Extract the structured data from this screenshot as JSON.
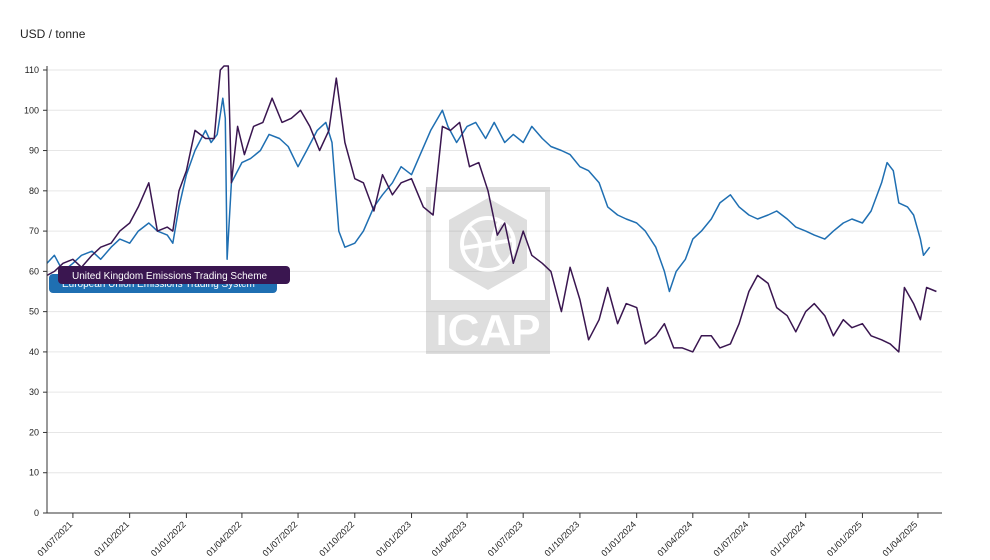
{
  "chart_data": {
    "type": "line",
    "ylabel": "USD / tonne",
    "ylim": [
      0,
      110
    ],
    "yticks": [
      0,
      10,
      20,
      30,
      40,
      50,
      60,
      70,
      80,
      90,
      100,
      110
    ],
    "x_tick_labels": [
      "01/07/2021",
      "01/10/2021",
      "01/01/2022",
      "01/04/2022",
      "01/07/2022",
      "01/10/2022",
      "01/01/2023",
      "01/04/2023",
      "01/07/2023",
      "01/10/2023",
      "01/01/2024",
      "01/04/2024",
      "01/07/2024",
      "01/10/2024",
      "01/01/2025",
      "01/04/2025"
    ],
    "xlim": [
      "2021-05-20",
      "2025-05-10"
    ],
    "grid": true,
    "watermark": "ICAP",
    "series": [
      {
        "name": "European Union Emissions Trading System",
        "color": "#1f6fb2",
        "points": [
          [
            "2021-05-20",
            62
          ],
          [
            "2021-06-01",
            64
          ],
          [
            "2021-06-15",
            60
          ],
          [
            "2021-07-01",
            62
          ],
          [
            "2021-07-15",
            64
          ],
          [
            "2021-08-01",
            65
          ],
          [
            "2021-08-15",
            63
          ],
          [
            "2021-09-01",
            66
          ],
          [
            "2021-09-15",
            68
          ],
          [
            "2021-10-01",
            67
          ],
          [
            "2021-10-15",
            70
          ],
          [
            "2021-11-01",
            72
          ],
          [
            "2021-11-15",
            70
          ],
          [
            "2021-12-01",
            69
          ],
          [
            "2021-12-10",
            67
          ],
          [
            "2021-12-20",
            76
          ],
          [
            "2022-01-01",
            84
          ],
          [
            "2022-01-15",
            90
          ],
          [
            "2022-02-01",
            95
          ],
          [
            "2022-02-10",
            92
          ],
          [
            "2022-02-20",
            94
          ],
          [
            "2022-03-01",
            103
          ],
          [
            "2022-03-05",
            98
          ],
          [
            "2022-03-08",
            63
          ],
          [
            "2022-03-15",
            82
          ],
          [
            "2022-04-01",
            87
          ],
          [
            "2022-04-15",
            88
          ],
          [
            "2022-05-01",
            90
          ],
          [
            "2022-05-15",
            94
          ],
          [
            "2022-06-01",
            93
          ],
          [
            "2022-06-15",
            91
          ],
          [
            "2022-07-01",
            86
          ],
          [
            "2022-07-15",
            90
          ],
          [
            "2022-08-01",
            95
          ],
          [
            "2022-08-15",
            97
          ],
          [
            "2022-08-25",
            92
          ],
          [
            "2022-09-05",
            70
          ],
          [
            "2022-09-15",
            66
          ],
          [
            "2022-10-01",
            67
          ],
          [
            "2022-10-15",
            70
          ],
          [
            "2022-11-01",
            76
          ],
          [
            "2022-11-15",
            79
          ],
          [
            "2022-12-01",
            82
          ],
          [
            "2022-12-15",
            86
          ],
          [
            "2023-01-01",
            84
          ],
          [
            "2023-01-15",
            89
          ],
          [
            "2023-02-01",
            95
          ],
          [
            "2023-02-20",
            100
          ],
          [
            "2023-03-01",
            96
          ],
          [
            "2023-03-15",
            92
          ],
          [
            "2023-04-01",
            96
          ],
          [
            "2023-04-15",
            97
          ],
          [
            "2023-05-01",
            93
          ],
          [
            "2023-05-15",
            97
          ],
          [
            "2023-06-01",
            92
          ],
          [
            "2023-06-15",
            94
          ],
          [
            "2023-07-01",
            92
          ],
          [
            "2023-07-15",
            96
          ],
          [
            "2023-08-01",
            93
          ],
          [
            "2023-08-15",
            91
          ],
          [
            "2023-09-01",
            90
          ],
          [
            "2023-09-15",
            89
          ],
          [
            "2023-10-01",
            86
          ],
          [
            "2023-10-15",
            85
          ],
          [
            "2023-11-01",
            82
          ],
          [
            "2023-11-15",
            76
          ],
          [
            "2023-12-01",
            74
          ],
          [
            "2023-12-15",
            73
          ],
          [
            "2024-01-01",
            72
          ],
          [
            "2024-01-15",
            70
          ],
          [
            "2024-02-01",
            66
          ],
          [
            "2024-02-15",
            60
          ],
          [
            "2024-02-23",
            55
          ],
          [
            "2024-03-05",
            60
          ],
          [
            "2024-03-20",
            63
          ],
          [
            "2024-04-01",
            68
          ],
          [
            "2024-04-15",
            70
          ],
          [
            "2024-05-01",
            73
          ],
          [
            "2024-05-15",
            77
          ],
          [
            "2024-06-01",
            79
          ],
          [
            "2024-06-15",
            76
          ],
          [
            "2024-07-01",
            74
          ],
          [
            "2024-07-15",
            73
          ],
          [
            "2024-08-01",
            74
          ],
          [
            "2024-08-15",
            75
          ],
          [
            "2024-09-01",
            73
          ],
          [
            "2024-09-15",
            71
          ],
          [
            "2024-10-01",
            70
          ],
          [
            "2024-10-15",
            69
          ],
          [
            "2024-11-01",
            68
          ],
          [
            "2024-11-15",
            70
          ],
          [
            "2024-12-01",
            72
          ],
          [
            "2024-12-15",
            73
          ],
          [
            "2025-01-01",
            72
          ],
          [
            "2025-01-15",
            75
          ],
          [
            "2025-02-01",
            82
          ],
          [
            "2025-02-10",
            87
          ],
          [
            "2025-02-20",
            85
          ],
          [
            "2025-03-01",
            77
          ],
          [
            "2025-03-15",
            76
          ],
          [
            "2025-03-25",
            74
          ],
          [
            "2025-04-05",
            68
          ],
          [
            "2025-04-10",
            64
          ],
          [
            "2025-04-20",
            66
          ]
        ]
      },
      {
        "name": "United Kingdom Emissions Trading Scheme",
        "color": "#3a1650",
        "points": [
          [
            "2021-05-20",
            59
          ],
          [
            "2021-06-01",
            60
          ],
          [
            "2021-06-15",
            62
          ],
          [
            "2021-07-01",
            63
          ],
          [
            "2021-07-15",
            61
          ],
          [
            "2021-08-01",
            64
          ],
          [
            "2021-08-15",
            66
          ],
          [
            "2021-09-01",
            67
          ],
          [
            "2021-09-15",
            70
          ],
          [
            "2021-10-01",
            72
          ],
          [
            "2021-10-15",
            76
          ],
          [
            "2021-11-01",
            82
          ],
          [
            "2021-11-15",
            70
          ],
          [
            "2021-12-01",
            71
          ],
          [
            "2021-12-10",
            70
          ],
          [
            "2021-12-20",
            80
          ],
          [
            "2022-01-01",
            85
          ],
          [
            "2022-01-15",
            95
          ],
          [
            "2022-02-01",
            93
          ],
          [
            "2022-02-15",
            93
          ],
          [
            "2022-02-25",
            110
          ],
          [
            "2022-03-03",
            111
          ],
          [
            "2022-03-10",
            111
          ],
          [
            "2022-03-15",
            82
          ],
          [
            "2022-03-25",
            96
          ],
          [
            "2022-04-05",
            89
          ],
          [
            "2022-04-20",
            96
          ],
          [
            "2022-05-05",
            97
          ],
          [
            "2022-05-20",
            103
          ],
          [
            "2022-06-05",
            97
          ],
          [
            "2022-06-20",
            98
          ],
          [
            "2022-07-05",
            100
          ],
          [
            "2022-07-20",
            96
          ],
          [
            "2022-08-05",
            90
          ],
          [
            "2022-08-20",
            95
          ],
          [
            "2022-09-01",
            108
          ],
          [
            "2022-09-15",
            92
          ],
          [
            "2022-10-01",
            83
          ],
          [
            "2022-10-15",
            82
          ],
          [
            "2022-11-01",
            75
          ],
          [
            "2022-11-15",
            84
          ],
          [
            "2022-12-01",
            79
          ],
          [
            "2022-12-15",
            82
          ],
          [
            "2023-01-01",
            83
          ],
          [
            "2023-01-20",
            76
          ],
          [
            "2023-02-05",
            74
          ],
          [
            "2023-02-20",
            96
          ],
          [
            "2023-03-05",
            95
          ],
          [
            "2023-03-20",
            97
          ],
          [
            "2023-04-05",
            86
          ],
          [
            "2023-04-20",
            87
          ],
          [
            "2023-05-05",
            80
          ],
          [
            "2023-05-20",
            69
          ],
          [
            "2023-06-01",
            72
          ],
          [
            "2023-06-15",
            62
          ],
          [
            "2023-07-01",
            70
          ],
          [
            "2023-07-15",
            64
          ],
          [
            "2023-08-01",
            62
          ],
          [
            "2023-08-15",
            60
          ],
          [
            "2023-09-01",
            50
          ],
          [
            "2023-09-15",
            61
          ],
          [
            "2023-10-01",
            53
          ],
          [
            "2023-10-15",
            43
          ],
          [
            "2023-11-01",
            48
          ],
          [
            "2023-11-15",
            56
          ],
          [
            "2023-12-01",
            47
          ],
          [
            "2023-12-15",
            52
          ],
          [
            "2024-01-01",
            51
          ],
          [
            "2024-01-15",
            42
          ],
          [
            "2024-02-01",
            44
          ],
          [
            "2024-02-15",
            47
          ],
          [
            "2024-03-01",
            41
          ],
          [
            "2024-03-15",
            41
          ],
          [
            "2024-04-01",
            40
          ],
          [
            "2024-04-15",
            44
          ],
          [
            "2024-05-01",
            44
          ],
          [
            "2024-05-15",
            41
          ],
          [
            "2024-06-01",
            42
          ],
          [
            "2024-06-15",
            47
          ],
          [
            "2024-07-01",
            55
          ],
          [
            "2024-07-15",
            59
          ],
          [
            "2024-08-01",
            57
          ],
          [
            "2024-08-15",
            51
          ],
          [
            "2024-09-01",
            49
          ],
          [
            "2024-09-15",
            45
          ],
          [
            "2024-10-01",
            50
          ],
          [
            "2024-10-15",
            52
          ],
          [
            "2024-11-01",
            49
          ],
          [
            "2024-11-15",
            44
          ],
          [
            "2024-12-01",
            48
          ],
          [
            "2024-12-15",
            46
          ],
          [
            "2025-01-01",
            47
          ],
          [
            "2025-01-15",
            44
          ],
          [
            "2025-02-01",
            43
          ],
          [
            "2025-02-15",
            42
          ],
          [
            "2025-03-01",
            40
          ],
          [
            "2025-03-10",
            56
          ],
          [
            "2025-03-25",
            52
          ],
          [
            "2025-04-05",
            48
          ],
          [
            "2025-04-15",
            56
          ],
          [
            "2025-05-01",
            55
          ]
        ]
      }
    ],
    "legend": {
      "placement": "left-middle",
      "entries": [
        "United Kingdom Emissions Trading Scheme",
        "European Union Emissions Trading System"
      ]
    }
  }
}
